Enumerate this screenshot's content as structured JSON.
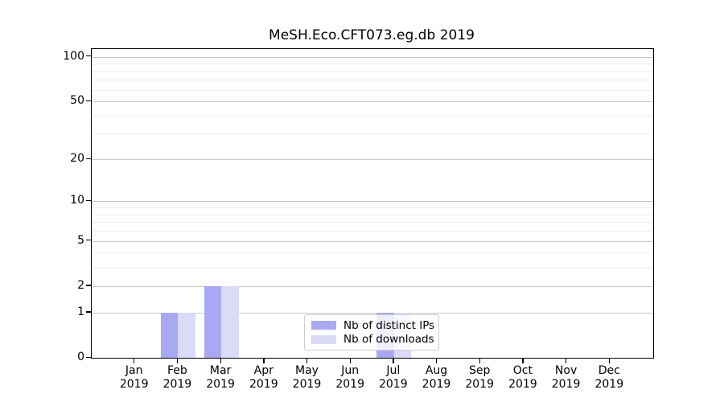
{
  "chart_data": {
    "type": "bar",
    "title": "MeSH.Eco.CFT073.eg.db 2019",
    "categories": [
      "Jan",
      "Feb",
      "Mar",
      "Apr",
      "May",
      "Jun",
      "Jul",
      "Aug",
      "Sep",
      "Oct",
      "Nov",
      "Dec"
    ],
    "year": "2019",
    "series": [
      {
        "name": "Nb of distinct IPs",
        "color": "#a9a9f2",
        "values": [
          0,
          1,
          2,
          0,
          0,
          0,
          1,
          0,
          0,
          0,
          0,
          0
        ]
      },
      {
        "name": "Nb of downloads",
        "color": "#dbdbf7",
        "values": [
          0,
          1,
          2,
          0,
          0,
          0,
          1,
          0,
          0,
          0,
          0,
          0
        ]
      }
    ],
    "xlabel": "",
    "ylabel": "",
    "y_axis": {
      "scale": "log1p",
      "major_ticks": [
        0,
        1,
        2,
        5,
        10,
        20,
        50,
        100
      ],
      "minor_gridlines": [
        3,
        4,
        6,
        7,
        8,
        9,
        30,
        40,
        60,
        70,
        80,
        90
      ],
      "ymax": 112.6
    },
    "grid": "on",
    "legend_position": "bottom-center"
  },
  "colors": {
    "major_grid": "#c8c8c8",
    "minor_grid": "#ededed",
    "axis": "#000000",
    "legend_border": "#cccccc",
    "legend_background": "rgba(255,255,255,0.8)",
    "background": "#ffffff"
  }
}
